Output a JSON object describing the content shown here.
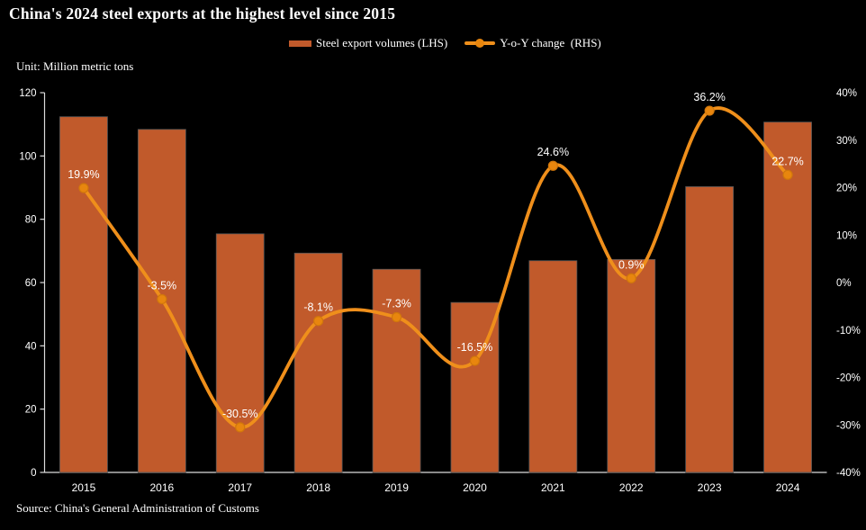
{
  "title": "China's 2024 steel exports at the highest level since 2015",
  "unit_label": "Unit: Million metric tons",
  "source": "Source: China's General Administration of Customs",
  "legend": [
    {
      "label": "Steel export volumes (LHS)",
      "type": "bar",
      "swatch_icon": "bar-swatch-icon"
    },
    {
      "label": "Y-o-Y change  (RHS)",
      "type": "line",
      "swatch_icon": "line-marker-swatch-icon"
    }
  ],
  "colors": {
    "background": "#000000",
    "bar": "#C15A2B",
    "bar_outline": "#565656",
    "line": "#EF8F1B",
    "marker": "#E8860E",
    "marker_stroke": "#D1770B",
    "axis": "#DCDCDC",
    "text": "#FFFFFF"
  },
  "chart_data": {
    "type": "bar",
    "title": "China's 2024 steel exports at the highest level since 2015",
    "categories": [
      "2015",
      "2016",
      "2017",
      "2018",
      "2019",
      "2020",
      "2021",
      "2022",
      "2023",
      "2024"
    ],
    "series": [
      {
        "name": "Steel export volumes (LHS)",
        "type": "bar",
        "axis": "left",
        "values": [
          112.4,
          108.4,
          75.4,
          69.3,
          64.2,
          53.7,
          66.9,
          67.3,
          90.3,
          110.7
        ]
      },
      {
        "name": "Y-o-Y change (RHS)",
        "type": "line",
        "axis": "right",
        "values": [
          19.9,
          -3.5,
          -30.5,
          -8.1,
          -7.3,
          -16.5,
          24.6,
          0.9,
          36.2,
          22.7
        ],
        "point_labels": [
          "19.9%",
          "-3.5%",
          "-30.5%",
          "-8.1%",
          "-7.3%",
          "-16.5%",
          "24.6%",
          "0.9%",
          "36.2%",
          "22.7%"
        ]
      }
    ],
    "left_axis": {
      "min": 0,
      "max": 120,
      "step": 20,
      "ticks": [
        "0",
        "20",
        "40",
        "60",
        "80",
        "100",
        "120"
      ]
    },
    "right_axis": {
      "min": -40,
      "max": 40,
      "step": 10,
      "ticks": [
        "-40%",
        "-30%",
        "-20%",
        "-10%",
        "0%",
        "10%",
        "20%",
        "30%",
        "40%"
      ]
    },
    "xlabel": "",
    "ylabel_left": "Million metric tons",
    "grid": false,
    "legend_position": "top",
    "line_smooth": true
  }
}
